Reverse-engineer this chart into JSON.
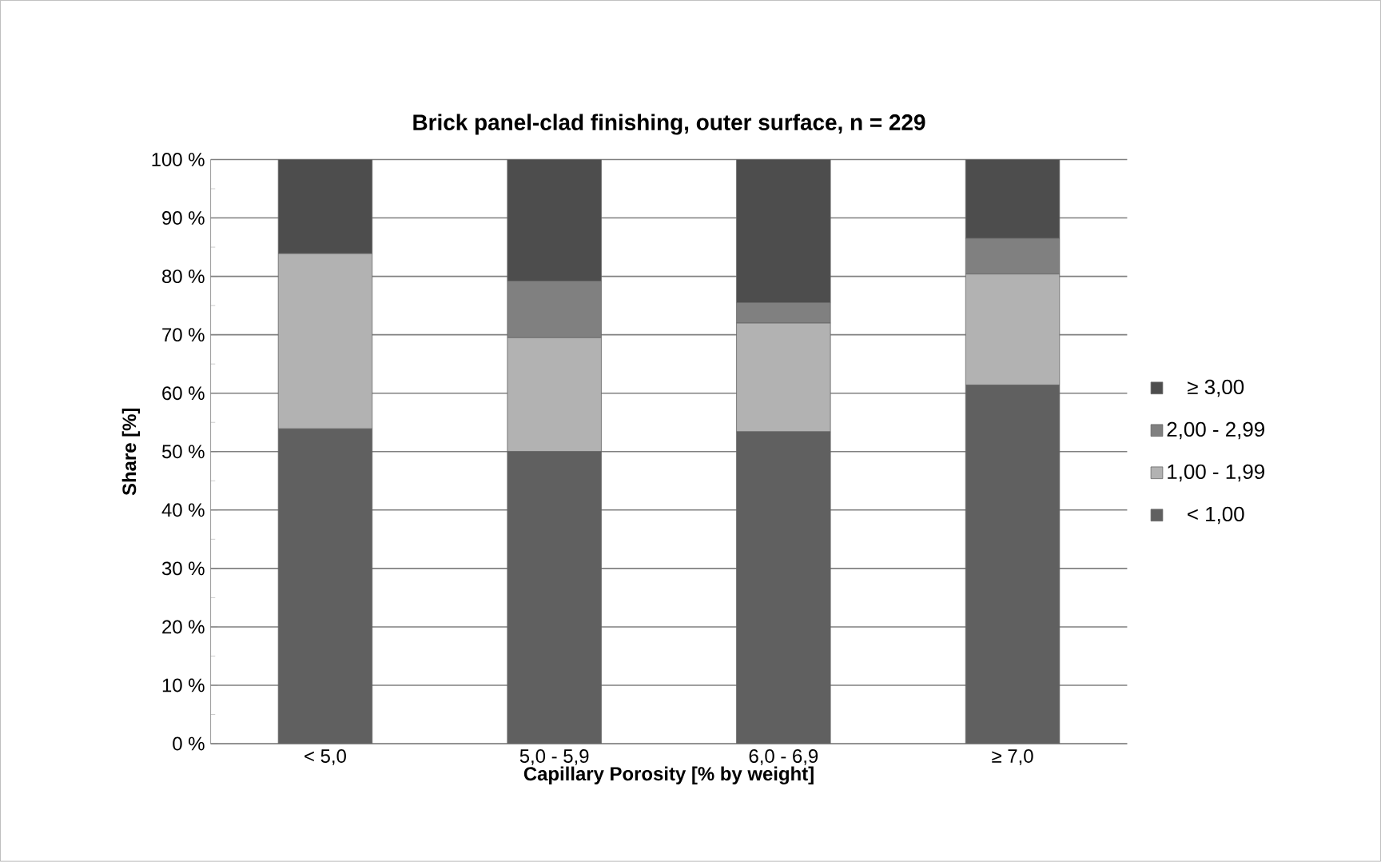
{
  "chart_data": {
    "type": "bar",
    "stacked": true,
    "title": "Brick panel-clad finishing, outer surface, n = 229",
    "xlabel": "Capillary Porosity [% by weight]",
    "ylabel": "Share [%]",
    "categories": [
      "< 5,0",
      "5,0 - 5,9",
      "6,0 - 6,9",
      "≥ 7,0"
    ],
    "series": [
      {
        "name": "< 1,00",
        "color": "#606060",
        "values": [
          53.9,
          50.0,
          53.4,
          61.4
        ]
      },
      {
        "name": "1,00 - 1,99",
        "color": "#b2b2b2",
        "values": [
          30.0,
          19.5,
          18.6,
          19.0
        ]
      },
      {
        "name": "2,00 - 2,99",
        "color": "#808080",
        "values": [
          0,
          9.7,
          3.5,
          6.1
        ]
      },
      {
        "name": "≥ 3,00",
        "color": "#4d4d4d",
        "values": [
          16.1,
          20.8,
          24.5,
          13.5
        ]
      }
    ],
    "ylim": [
      0,
      100
    ],
    "yticks": [
      {
        "value": 0,
        "label": "0 %"
      },
      {
        "value": 10,
        "label": "10 %"
      },
      {
        "value": 20,
        "label": "20 %"
      },
      {
        "value": 30,
        "label": "30 %"
      },
      {
        "value": 40,
        "label": "40 %"
      },
      {
        "value": 50,
        "label": "50 %"
      },
      {
        "value": 60,
        "label": "60 %"
      },
      {
        "value": 70,
        "label": "70 %"
      },
      {
        "value": 80,
        "label": "80 %"
      },
      {
        "value": 90,
        "label": "90 %"
      },
      {
        "value": 100,
        "label": "100 %"
      }
    ],
    "grid": "y",
    "legend": "right"
  }
}
